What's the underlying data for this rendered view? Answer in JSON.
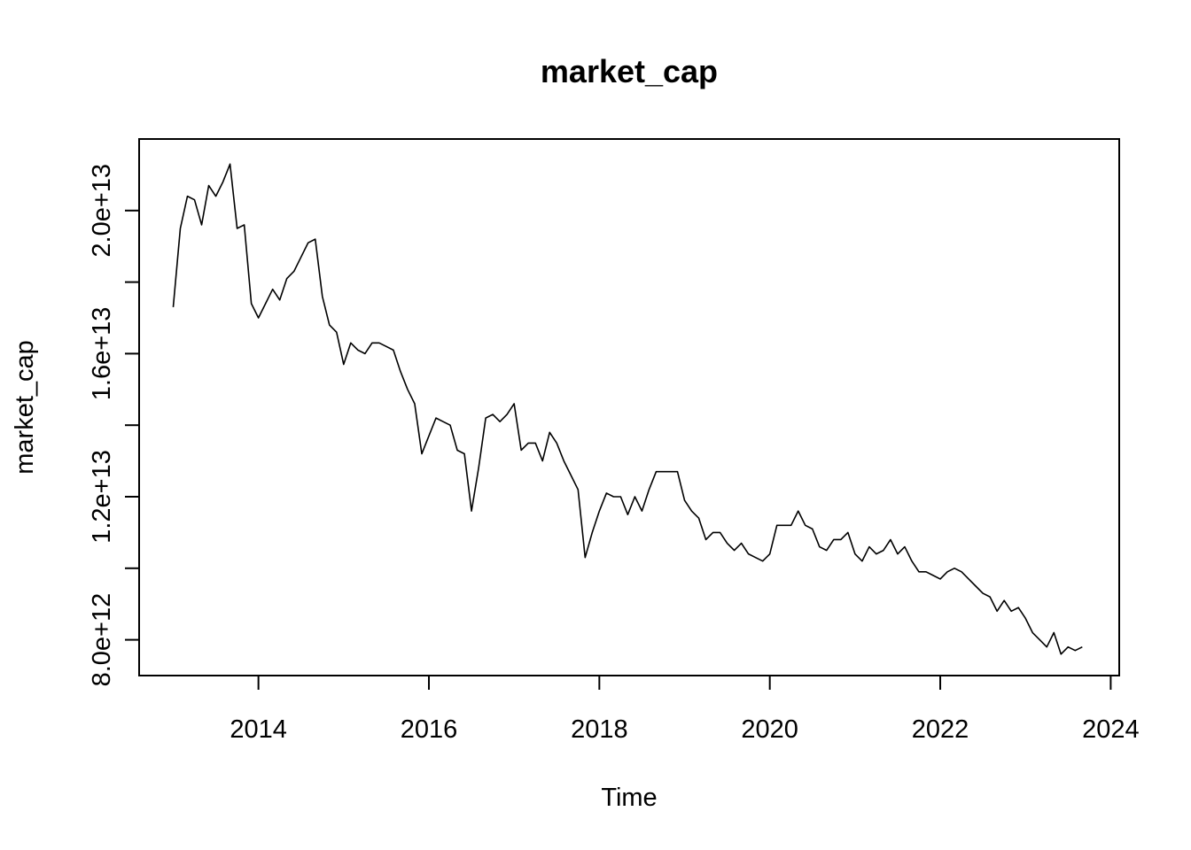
{
  "chart_data": {
    "type": "line",
    "title": "market_cap",
    "xlabel": "Time",
    "ylabel": "market_cap",
    "xlim": [
      2012.6,
      2024.1
    ],
    "ylim": [
      7000000000000.0,
      22000000000000.0
    ],
    "x_ticks": [
      2014,
      2016,
      2018,
      2020,
      2022,
      2024
    ],
    "x_tick_labels": [
      "2014",
      "2016",
      "2018",
      "2020",
      "2022",
      "2024"
    ],
    "y_ticks": [
      8000000000000.0,
      10000000000000.0,
      12000000000000.0,
      14000000000000.0,
      16000000000000.0,
      18000000000000.0,
      20000000000000.0
    ],
    "y_tick_labels": [
      "8.0e+12",
      "",
      "1.2e+13",
      "",
      "1.6e+13",
      "",
      "2.0e+13"
    ],
    "grid": false,
    "legend": "none",
    "series": [
      {
        "x_start": 2013.0,
        "x_step": 0.0833333333,
        "values": [
          17300000000000.0,
          19500000000000.0,
          20400000000000.0,
          20300000000000.0,
          19600000000000.0,
          20700000000000.0,
          20400000000000.0,
          20800000000000.0,
          21300000000000.0,
          19500000000000.0,
          19600000000000.0,
          17400000000000.0,
          17000000000000.0,
          17400000000000.0,
          17800000000000.0,
          17500000000000.0,
          18100000000000.0,
          18300000000000.0,
          18700000000000.0,
          19100000000000.0,
          19200000000000.0,
          17600000000000.0,
          16800000000000.0,
          16600000000000.0,
          15700000000000.0,
          16300000000000.0,
          16100000000000.0,
          16000000000000.0,
          16300000000000.0,
          16300000000000.0,
          16200000000000.0,
          16100000000000.0,
          15500000000000.0,
          15000000000000.0,
          14600000000000.0,
          13200000000000.0,
          13700000000000.0,
          14200000000000.0,
          14100000000000.0,
          14000000000000.0,
          13300000000000.0,
          13200000000000.0,
          11600000000000.0,
          12800000000000.0,
          14200000000000.0,
          14300000000000.0,
          14100000000000.0,
          14300000000000.0,
          14600000000000.0,
          13300000000000.0,
          13500000000000.0,
          13500000000000.0,
          13000000000000.0,
          13800000000000.0,
          13500000000000.0,
          13000000000000.0,
          12600000000000.0,
          12200000000000.0,
          10300000000000.0,
          11000000000000.0,
          11600000000000.0,
          12100000000000.0,
          12000000000000.0,
          12000000000000.0,
          11500000000000.0,
          12000000000000.0,
          11600000000000.0,
          12200000000000.0,
          12700000000000.0,
          12700000000000.0,
          12700000000000.0,
          12700000000000.0,
          11900000000000.0,
          11600000000000.0,
          11400000000000.0,
          10800000000000.0,
          11000000000000.0,
          11000000000000.0,
          10700000000000.0,
          10500000000000.0,
          10700000000000.0,
          10400000000000.0,
          10300000000000.0,
          10200000000000.0,
          10400000000000.0,
          11200000000000.0,
          11200000000000.0,
          11200000000000.0,
          11600000000000.0,
          11200000000000.0,
          11100000000000.0,
          10600000000000.0,
          10500000000000.0,
          10800000000000.0,
          10800000000000.0,
          11000000000000.0,
          10400000000000.0,
          10200000000000.0,
          10600000000000.0,
          10400000000000.0,
          10500000000000.0,
          10800000000000.0,
          10400000000000.0,
          10600000000000.0,
          10200000000000.0,
          9900000000000.0,
          9900000000000.0,
          9800000000000.0,
          9700000000000.0,
          9900000000000.0,
          10000000000000.0,
          9900000000000.0,
          9700000000000.0,
          9500000000000.0,
          9300000000000.0,
          9200000000000.0,
          8800000000000.0,
          9100000000000.0,
          8800000000000.0,
          8900000000000.0,
          8600000000000.0,
          8200000000000.0,
          8000000000000.0,
          7800000000000.0,
          8200000000000.0,
          7600000000000.0,
          7800000000000.0,
          7700000000000.0,
          7800000000000.0
        ]
      }
    ]
  }
}
